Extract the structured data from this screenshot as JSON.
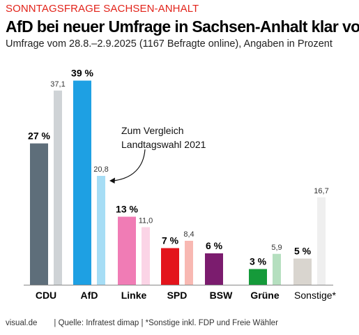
{
  "header": {
    "kicker": "SONNTAGSFRAGE SACHSEN-ANHALT",
    "title": "AfD bei neuer Umfrage in Sachsen-Anhalt klar vorn",
    "subtitle": "Umfrage vom 28.8.–2.9.2025 (1167 Befragte online), Angaben in Prozent"
  },
  "chart_data": {
    "type": "bar",
    "categories": [
      "CDU",
      "AfD",
      "Linke",
      "SPD",
      "BSW",
      "Grüne",
      "Sonstige*"
    ],
    "series": [
      {
        "values": [
          27,
          39,
          13,
          7,
          6,
          3,
          5
        ],
        "labels": [
          "27 %",
          "39 %",
          "13 %",
          "7 %",
          "6 %",
          "3 %",
          "5 %"
        ],
        "colors": [
          "#5e6e7a",
          "#1ea0e3",
          "#f07cb5",
          "#e3141c",
          "#7b1c6e",
          "#159a3a",
          "#d9d5cf"
        ]
      },
      {
        "values": [
          37.1,
          20.8,
          11.0,
          8.4,
          null,
          5.9,
          16.7
        ],
        "labels": [
          "37,1",
          "20,8",
          "11,0",
          "8,4",
          "",
          "5,9",
          "16,7"
        ],
        "colors": [
          "#cfd3d6",
          "#a6ddf5",
          "#fbd4e6",
          "#f8b8b2",
          "#d9c4d6",
          "#b5dfbf",
          "#efefef"
        ]
      }
    ],
    "annotation": [
      "Zum Vergleich",
      "Landtagswahl 2021"
    ],
    "ylim": [
      0,
      40
    ],
    "grid": false,
    "legend": "none"
  },
  "footer": {
    "credit": "visual.de",
    "source": "| Quelle: Infratest dimap | *Sonstige inkl. FDP und Freie Wähler"
  }
}
